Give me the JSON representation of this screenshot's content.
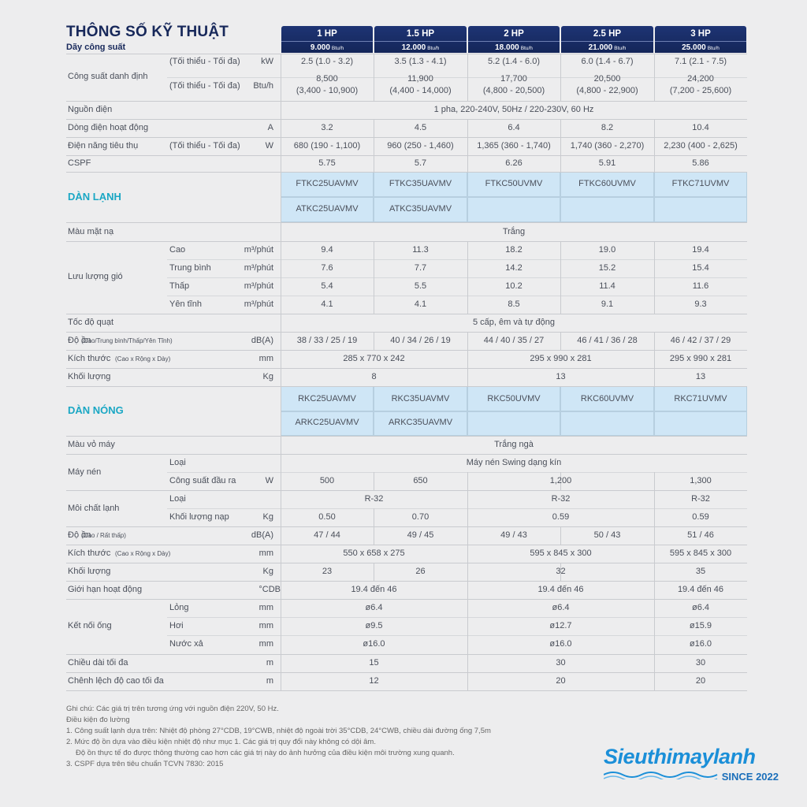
{
  "title": "THÔNG SỐ KỸ THUẬT",
  "subtitle": "Dãy công suất",
  "models": [
    {
      "hp": "1 HP",
      "btu": "9.000",
      "unit": "Btu/h"
    },
    {
      "hp": "1.5 HP",
      "btu": "12.000",
      "unit": "Btu/h"
    },
    {
      "hp": "2 HP",
      "btu": "18.000",
      "unit": "Btu/h"
    },
    {
      "hp": "2.5 HP",
      "btu": "21.000",
      "unit": "Btu/h"
    },
    {
      "hp": "3 HP",
      "btu": "25.000",
      "unit": "Btu/h"
    }
  ],
  "general": {
    "cong_suat": "Công suất danh định",
    "min_max": "(Tối thiểu - Tối đa)",
    "kw": "kW",
    "btuh": "Btu/h",
    "kw_vals": [
      "2.5 (1.0 - 3.2)",
      "3.5 (1.3 - 4.1)",
      "5.2 (1.4 - 6.0)",
      "6.0 (1.4 - 6.7)",
      "7.1 (2.1 - 7.5)"
    ],
    "btu_vals": [
      [
        "8,500",
        "(3,400 - 10,900)"
      ],
      [
        "11,900",
        "(4,400 - 14,000)"
      ],
      [
        "17,700",
        "(4,800 - 20,500)"
      ],
      [
        "20,500",
        "(4,800 - 22,900)"
      ],
      [
        "24,200",
        "(7,200 - 25,600)"
      ]
    ],
    "nguon_dien": "Nguồn điện",
    "nguon_dien_val": "1 pha, 220-240V, 50Hz / 220-230V, 60 Hz",
    "dong_dien": "Dòng điện hoạt động",
    "dong_dien_unit": "A",
    "dong_dien_vals": [
      "3.2",
      "4.5",
      "6.4",
      "8.2",
      "10.4"
    ],
    "dien_nang": "Điện năng tiêu thụ",
    "dien_nang_unit": "W",
    "dien_nang_vals": [
      "680 (190 - 1,100)",
      "960 (250 - 1,460)",
      "1,365 (360 - 1,740)",
      "1,740 (360 - 2,270)",
      "2,230 (400 - 2,625)"
    ],
    "cspf": "CSPF",
    "cspf_vals": [
      "5.75",
      "5.7",
      "6.26",
      "5.91",
      "5.86"
    ]
  },
  "indoor": {
    "section": "DÀN LẠNH",
    "models_row1": [
      "FTKC25UAVMV",
      "FTKC35UAVMV",
      "FTKC50UVMV",
      "FTKC60UVMV",
      "FTKC71UVMV"
    ],
    "models_row2": [
      "ATKC25UAVMV",
      "ATKC35UAVMV"
    ],
    "mau_mat_na": "Màu mặt nạ",
    "mau_mat_na_val": "Trắng",
    "luu_luong": "Lưu lượng gió",
    "airflow_unit": "m³/phút",
    "airflow": [
      {
        "level": "Cao",
        "vals": [
          "9.4",
          "11.3",
          "18.2",
          "19.0",
          "19.4"
        ]
      },
      {
        "level": "Trung bình",
        "vals": [
          "7.6",
          "7.7",
          "14.2",
          "15.2",
          "15.4"
        ]
      },
      {
        "level": "Thấp",
        "vals": [
          "5.4",
          "5.5",
          "10.2",
          "11.4",
          "11.6"
        ]
      },
      {
        "level": "Yên tĩnh",
        "vals": [
          "4.1",
          "4.1",
          "8.5",
          "9.1",
          "9.3"
        ]
      }
    ],
    "toc_do_quat": "Tốc độ quạt",
    "toc_do_quat_val": "5 cấp, êm và tự động",
    "do_on": "Độ ồn",
    "do_on_sub": "(Cao/Trung bình/Thấp/Yên Tĩnh)",
    "do_on_unit": "dB(A)",
    "do_on_vals": [
      "38 / 33 / 25 / 19",
      "40 / 34 / 26 / 19",
      "44 / 40 / 35 / 27",
      "46 / 41 / 36 / 28",
      "46 / 42 / 37 / 29"
    ],
    "kich_thuoc": "Kích thước",
    "kich_thuoc_sub": "(Cao x Rộng x Dày)",
    "mm": "mm",
    "kich_thuoc_vals": [
      "285 x 770 x 242",
      "295 x 990 x 281",
      "295 x 990 x 281"
    ],
    "khoi_luong": "Khối lượng",
    "kg": "Kg",
    "khoi_luong_vals": [
      "8",
      "13",
      "13"
    ]
  },
  "outdoor": {
    "section": "DÀN NÓNG",
    "models_row1": [
      "RKC25UAVMV",
      "RKC35UAVMV",
      "RKC50UVMV",
      "RKC60UVMV",
      "RKC71UVMV"
    ],
    "models_row2": [
      "ARKC25UAVMV",
      "ARKC35UAVMV"
    ],
    "mau_vo": "Màu vỏ máy",
    "mau_vo_val": "Trắng ngà",
    "may_nen": "Máy nén",
    "loai": "Loại",
    "loai_val": "Máy nén Swing dạng kín",
    "cong_suat_dau_ra": "Công suất đầu ra",
    "w": "W",
    "cong_suat_vals": [
      "500",
      "650",
      "1,200",
      "1,300"
    ],
    "moi_chat": "Môi chất lạnh",
    "moi_chat_vals": [
      "R-32",
      "R-32",
      "R-32"
    ],
    "khoi_luong_nap": "Khối lượng nạp",
    "kg": "Kg",
    "nap_vals": [
      "0.50",
      "0.70",
      "0.59",
      "0.59"
    ],
    "do_on": "Độ ồn",
    "do_on_sub": "(Cao / Rất thấp)",
    "do_on_unit": "dB(A)",
    "do_on_vals": [
      "47 / 44",
      "49 / 45",
      "49 / 43",
      "50 / 43",
      "51 / 46"
    ],
    "kich_thuoc": "Kích thước",
    "kich_thuoc_sub": "(Cao x Rộng x Dày)",
    "mm": "mm",
    "kich_thuoc_vals": [
      "550 x 658 x 275",
      "595 x 845 x 300",
      "595 x 845 x 300"
    ],
    "khoi_luong": "Khối lượng",
    "khoi_luong_vals": [
      "23",
      "26",
      "32",
      "35"
    ],
    "gioi_han": "Giới hạn hoạt động",
    "gioi_han_unit": "°CDB",
    "gioi_han_vals": [
      "19.4 đến 46",
      "19.4 đến 46",
      "19.4 đến 46"
    ],
    "ket_noi": "Kết nối ống",
    "long": "Lỏng",
    "hoi": "Hơi",
    "nuoc_xa": "Nước xả",
    "long_vals": [
      "ø6.4",
      "ø6.4",
      "ø6.4"
    ],
    "hoi_vals": [
      "ø9.5",
      "ø12.7",
      "ø15.9"
    ],
    "nuoc_xa_vals": [
      "ø16.0",
      "ø16.0",
      "ø16.0"
    ],
    "chieu_dai": "Chiều dài tối đa",
    "m": "m",
    "chieu_dai_vals": [
      "15",
      "30",
      "30"
    ],
    "chenh_lech": "Chênh lệch độ cao tối đa",
    "chenh_lech_vals": [
      "12",
      "20",
      "20"
    ]
  },
  "notes": [
    "Ghi chú: Các giá trị trên tương ứng với nguồn điện 220V, 50 Hz.",
    "Điều kiện đo lường",
    "1. Công suất lạnh dựa trên: Nhiệt độ phòng 27°CDB, 19°CWB, nhiệt độ ngoài trời 35°CDB, 24°CWB, chiều dài đường ống 7,5m",
    "2. Mức độ ồn dựa vào điều kiện nhiệt độ như mục 1. Các giá trị quy đổi này không có dội âm.",
    "    Độ ồn thực tế đo được thông thường cao hơn các giá trị này do ảnh hưởng của điều kiện môi trường xung quanh.",
    "3. CSPF dựa trên tiêu chuẩn TCVN 7830: 2015"
  ],
  "logo": {
    "name": "Sieuthimaylanh",
    "since": "SINCE 2022"
  }
}
